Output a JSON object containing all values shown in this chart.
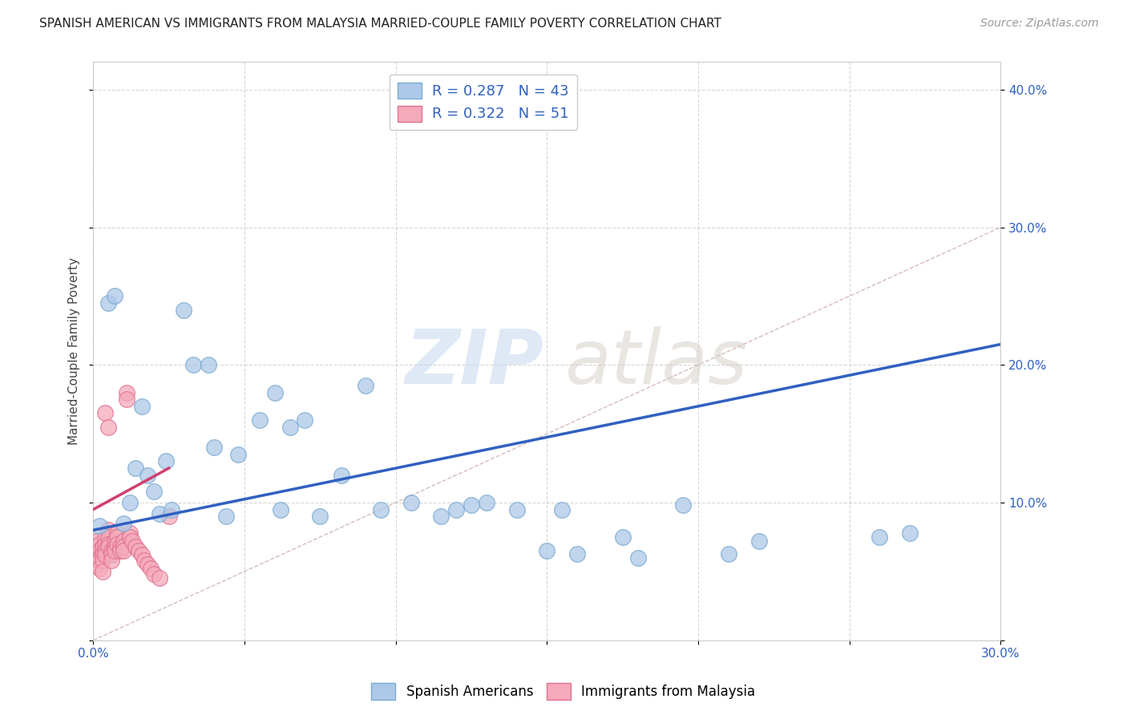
{
  "title": "SPANISH AMERICAN VS IMMIGRANTS FROM MALAYSIA MARRIED-COUPLE FAMILY POVERTY CORRELATION CHART",
  "source": "Source: ZipAtlas.com",
  "ylabel": "Married-Couple Family Poverty",
  "xlim": [
    0.0,
    0.3
  ],
  "ylim": [
    0.0,
    0.42
  ],
  "color_blue": "#adc8e8",
  "color_pink": "#f5aabb",
  "scatter_edge_blue": "#7aaad0",
  "scatter_edge_pink": "#e07090",
  "trendline_blue_color": "#3060c0",
  "trendline_pink_color": "#d04070",
  "diag_color": "#ccaaaa",
  "R_blue": 0.287,
  "N_blue": 43,
  "R_pink": 0.322,
  "N_pink": 51,
  "legend_label_blue": "Spanish Americans",
  "legend_label_pink": "Immigrants from Malaysia",
  "watermark_zip": "ZIP",
  "watermark_atlas": "atlas",
  "bg_color": "#ffffff",
  "grid_color": "#cccccc",
  "blue_x": [
    0.002,
    0.005,
    0.007,
    0.01,
    0.012,
    0.014,
    0.016,
    0.018,
    0.02,
    0.022,
    0.024,
    0.026,
    0.03,
    0.033,
    0.038,
    0.04,
    0.044,
    0.048,
    0.055,
    0.06,
    0.062,
    0.065,
    0.07,
    0.075,
    0.082,
    0.09,
    0.095,
    0.105,
    0.115,
    0.12,
    0.125,
    0.13,
    0.14,
    0.15,
    0.155,
    0.16,
    0.175,
    0.18,
    0.195,
    0.21,
    0.22,
    0.26,
    0.27
  ],
  "blue_y": [
    0.083,
    0.245,
    0.25,
    0.085,
    0.1,
    0.125,
    0.17,
    0.12,
    0.108,
    0.092,
    0.13,
    0.095,
    0.24,
    0.2,
    0.2,
    0.14,
    0.09,
    0.135,
    0.16,
    0.18,
    0.095,
    0.155,
    0.16,
    0.09,
    0.12,
    0.185,
    0.095,
    0.1,
    0.09,
    0.095,
    0.098,
    0.1,
    0.095,
    0.065,
    0.095,
    0.063,
    0.075,
    0.06,
    0.098,
    0.063,
    0.072,
    0.075,
    0.078
  ],
  "pink_x": [
    0.001,
    0.001,
    0.001,
    0.001,
    0.002,
    0.002,
    0.002,
    0.002,
    0.002,
    0.003,
    0.003,
    0.003,
    0.003,
    0.004,
    0.004,
    0.004,
    0.004,
    0.005,
    0.005,
    0.005,
    0.005,
    0.006,
    0.006,
    0.006,
    0.007,
    0.007,
    0.007,
    0.008,
    0.008,
    0.008,
    0.009,
    0.009,
    0.01,
    0.01,
    0.01,
    0.011,
    0.011,
    0.012,
    0.012,
    0.013,
    0.014,
    0.015,
    0.016,
    0.017,
    0.018,
    0.019,
    0.02,
    0.022,
    0.025,
    0.004,
    0.005
  ],
  "pink_y": [
    0.065,
    0.072,
    0.06,
    0.055,
    0.07,
    0.065,
    0.06,
    0.058,
    0.052,
    0.068,
    0.063,
    0.058,
    0.05,
    0.075,
    0.07,
    0.065,
    0.062,
    0.08,
    0.075,
    0.07,
    0.068,
    0.065,
    0.062,
    0.058,
    0.072,
    0.068,
    0.065,
    0.078,
    0.075,
    0.07,
    0.068,
    0.065,
    0.072,
    0.068,
    0.065,
    0.18,
    0.175,
    0.078,
    0.075,
    0.072,
    0.068,
    0.065,
    0.062,
    0.058,
    0.055,
    0.052,
    0.048,
    0.045,
    0.09,
    0.165,
    0.155
  ],
  "trendline_blue_x0": 0.0,
  "trendline_blue_y0": 0.08,
  "trendline_blue_x1": 0.3,
  "trendline_blue_y1": 0.215,
  "trendline_pink_x0": 0.0,
  "trendline_pink_y0": 0.095,
  "trendline_pink_x1": 0.025,
  "trendline_pink_y1": 0.125
}
